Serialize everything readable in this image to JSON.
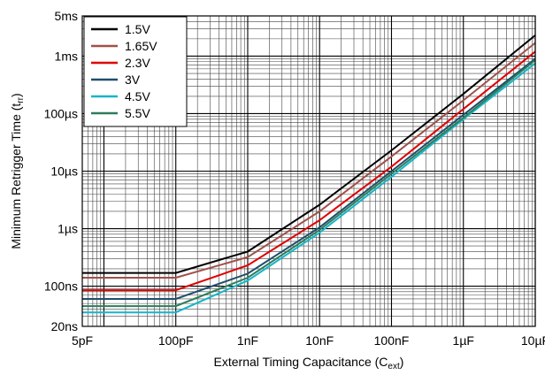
{
  "chart_data": {
    "type": "line",
    "title": "",
    "xlabel": "External Timing Capacitance (C",
    "xlabel_sub": "ext",
    "xlabel_end": ")",
    "ylabel": "Minimum Retrigger Time (t",
    "ylabel_sub": "rr",
    "ylabel_end": ")",
    "x_scale": "log",
    "y_scale": "log",
    "xlim": [
      "5pF",
      "10µF"
    ],
    "ylim": [
      "20ns",
      "5ms"
    ],
    "grid": true,
    "legend_position": "top-left",
    "x_ticks": [
      "5pF",
      "100pF",
      "1nF",
      "10nF",
      "100nF",
      "1µF",
      "10µF"
    ],
    "y_ticks": [
      "20ns",
      "100ns",
      "1µs",
      "10µs",
      "100µs",
      "1ms",
      "5ms"
    ],
    "x": [
      "5pF",
      "100pF",
      "1nF",
      "10nF",
      "100nF",
      "1µF",
      "10µF"
    ],
    "series": [
      {
        "name": "1.5V",
        "color": "#000000",
        "values": [
          "170ns",
          "170ns",
          "400ns",
          "2.6µs",
          "23µs",
          "220µs",
          "2.3ms"
        ]
      },
      {
        "name": "1.65V",
        "color": "#a0504a",
        "values": [
          "140ns",
          "140ns",
          "320ns",
          "2µs",
          "18µs",
          "170µs",
          "1.7ms"
        ]
      },
      {
        "name": "2.3V",
        "color": "#e00000",
        "values": [
          "85ns",
          "85ns",
          "230ns",
          "1.4µs",
          "12µs",
          "120µs",
          "1.2ms"
        ]
      },
      {
        "name": "3V",
        "color": "#1f4e6b",
        "values": [
          "60ns",
          "60ns",
          "165ns",
          "1.05µs",
          "10µs",
          "95µs",
          "900µs"
        ]
      },
      {
        "name": "4.5V",
        "color": "#18b4c8",
        "values": [
          "35ns",
          "35ns",
          "125ns",
          "850ns",
          "8µs",
          "80µs",
          "750µs"
        ]
      },
      {
        "name": "5.5V",
        "color": "#2e7d5b",
        "values": [
          "45ns",
          "45ns",
          "140ns",
          "950ns",
          "9µs",
          "85µs",
          "850µs"
        ]
      }
    ]
  }
}
